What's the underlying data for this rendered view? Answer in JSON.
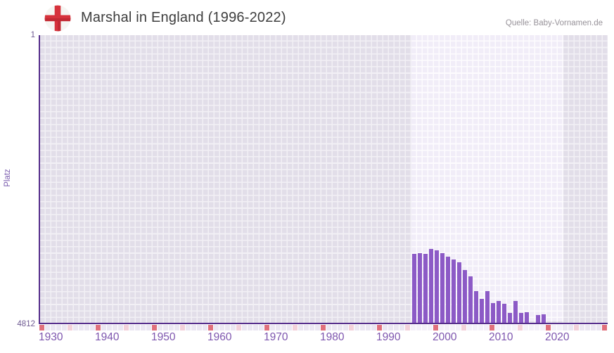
{
  "header": {
    "title": "Marshal in England (1996-2022)",
    "source": "Quelle: Baby-Vornamen.de",
    "flag_icon": "england-flag-icon"
  },
  "chart_data": {
    "type": "bar",
    "title": "Marshal in England (1996-2022)",
    "xlabel": "",
    "ylabel": "Platz",
    "y_min_label": "1",
    "y_max_label": "4812",
    "ylim": [
      1,
      4812
    ],
    "y_inverted": true,
    "grid": true,
    "x_range": [
      1930,
      2030
    ],
    "x_tick_years": [
      1930,
      1940,
      1950,
      1960,
      1970,
      1980,
      1990,
      2000,
      2010,
      2020
    ],
    "highlight_period": [
      1996,
      2022
    ],
    "series": [
      {
        "name": "Platz",
        "points": [
          {
            "year": 1996,
            "rank": 3660
          },
          {
            "year": 1997,
            "rank": 3645
          },
          {
            "year": 1998,
            "rank": 3658
          },
          {
            "year": 1999,
            "rank": 3572
          },
          {
            "year": 2000,
            "rank": 3600
          },
          {
            "year": 2001,
            "rank": 3650
          },
          {
            "year": 2002,
            "rank": 3703
          },
          {
            "year": 2003,
            "rank": 3750
          },
          {
            "year": 2004,
            "rank": 3800
          },
          {
            "year": 2005,
            "rank": 3930
          },
          {
            "year": 2006,
            "rank": 4030
          },
          {
            "year": 2007,
            "rank": 4283
          },
          {
            "year": 2008,
            "rank": 4410
          },
          {
            "year": 2009,
            "rank": 4283
          },
          {
            "year": 2010,
            "rank": 4480
          },
          {
            "year": 2011,
            "rank": 4451
          },
          {
            "year": 2012,
            "rank": 4498
          },
          {
            "year": 2013,
            "rank": 4643
          },
          {
            "year": 2014,
            "rank": 4451
          },
          {
            "year": 2015,
            "rank": 4650
          },
          {
            "year": 2016,
            "rank": 4631
          },
          {
            "year": 2018,
            "rank": 4682
          },
          {
            "year": 2019,
            "rank": 4667
          }
        ]
      }
    ],
    "year_markers": {
      "red_years": [
        1930,
        1940,
        1950,
        1960,
        1970,
        1980,
        1990,
        2000,
        2010,
        2020,
        2030
      ],
      "pink_years": [
        1935,
        1945,
        1955,
        1965,
        1975,
        1985,
        1995,
        2005,
        2015,
        2025
      ]
    }
  },
  "colors": {
    "bar": "#8c5ac6",
    "axis": "#562e8c",
    "x_label": "#7d55ae",
    "y_label": "#6e5a92",
    "title": "#3d3d3d",
    "source": "#979299",
    "marker_red": "#e0707c",
    "marker_pink": "#f3d1da",
    "marker_default": "#ebe7f2",
    "band_cell": "#f1edf8",
    "outer_cell": "#e2dee9",
    "flag_red": "#d6323c"
  }
}
